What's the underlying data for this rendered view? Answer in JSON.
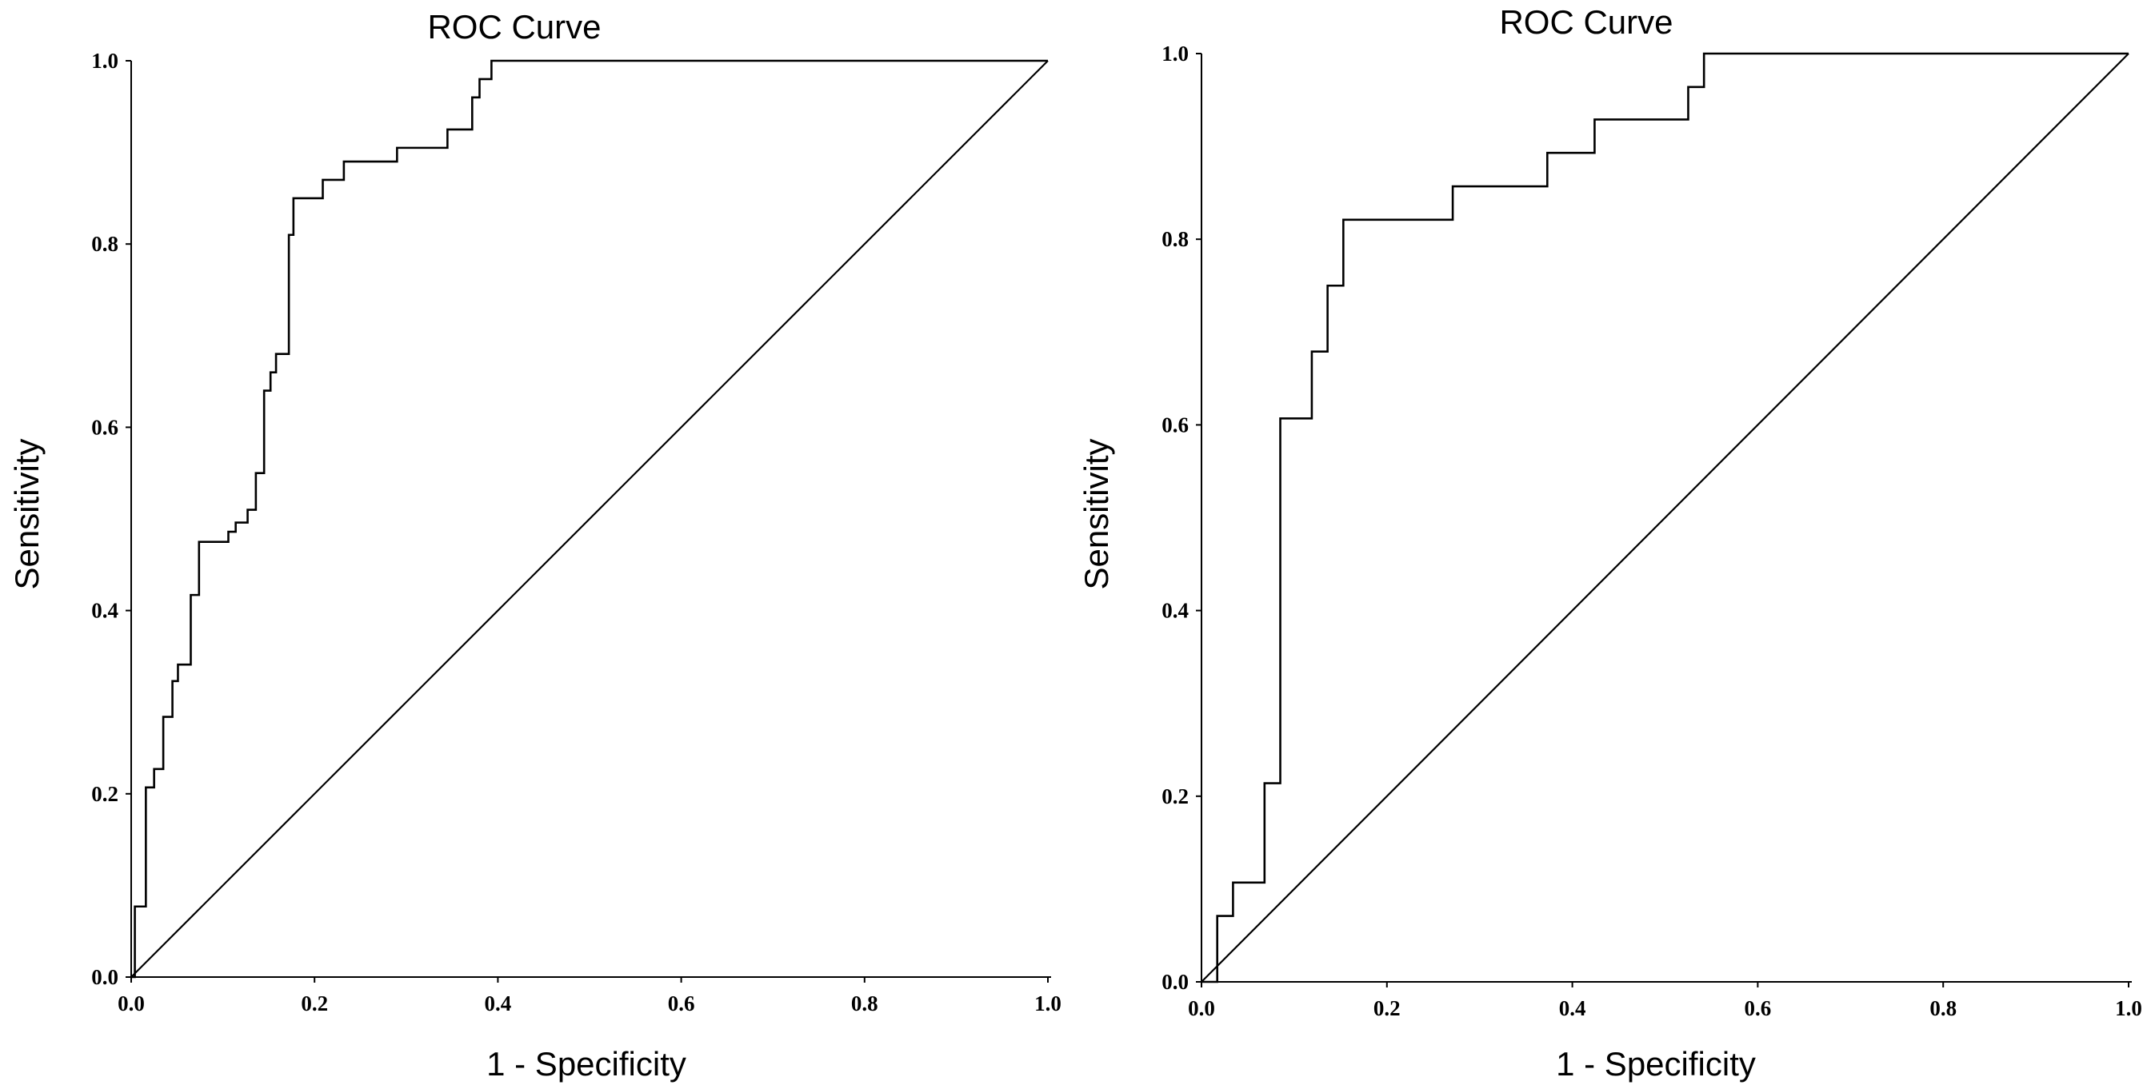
{
  "chart_data": [
    {
      "type": "line",
      "title": "ROC Curve",
      "xlabel": "1 - Specificity",
      "ylabel": "Sensitivity",
      "xlim": [
        0,
        1
      ],
      "ylim": [
        0,
        1
      ],
      "xticks": [
        "0.0",
        "0.2",
        "0.4",
        "0.6",
        "0.8",
        "1.0"
      ],
      "yticks": [
        "0.0",
        "0.2",
        "0.4",
        "0.6",
        "0.8",
        "1.0"
      ],
      "grid": false,
      "series": [
        {
          "kind": "roc",
          "x": [
            0,
            0.004,
            0.004,
            0.016,
            0.016,
            0.025,
            0.025,
            0.035,
            0.035,
            0.045,
            0.045,
            0.051,
            0.051,
            0.065,
            0.065,
            0.074,
            0.074,
            0.106,
            0.106,
            0.114,
            0.114,
            0.127,
            0.127,
            0.136,
            0.136,
            0.145,
            0.145,
            0.152,
            0.152,
            0.158,
            0.158,
            0.172,
            0.172,
            0.177,
            0.177,
            0.209,
            0.209,
            0.232,
            0.232,
            0.29,
            0.29,
            0.345,
            0.345,
            0.372,
            0.372,
            0.38,
            0.38,
            0.387,
            0.387,
            0.393,
            0.393,
            0.41,
            0.41,
            1.0
          ],
          "y": [
            0,
            0,
            0.077,
            0.077,
            0.207,
            0.207,
            0.227,
            0.227,
            0.284,
            0.284,
            0.323,
            0.323,
            0.341,
            0.341,
            0.417,
            0.417,
            0.475,
            0.475,
            0.486,
            0.486,
            0.496,
            0.496,
            0.51,
            0.51,
            0.55,
            0.55,
            0.64,
            0.64,
            0.66,
            0.66,
            0.68,
            0.68,
            0.81,
            0.81,
            0.85,
            0.85,
            0.87,
            0.87,
            0.89,
            0.89,
            0.905,
            0.905,
            0.925,
            0.925,
            0.96,
            0.96,
            0.98,
            0.98,
            0.98,
            0.98,
            1.0,
            1.0,
            1.0,
            1.0
          ]
        },
        {
          "kind": "reference",
          "x": [
            0,
            1
          ],
          "y": [
            0,
            1
          ]
        }
      ]
    },
    {
      "type": "line",
      "title": "ROC Curve",
      "xlabel": "1 - Specificity",
      "ylabel": "Sensitivity",
      "xlim": [
        0,
        1
      ],
      "ylim": [
        0,
        1
      ],
      "xticks": [
        "0.0",
        "0.2",
        "0.4",
        "0.6",
        "0.8",
        "1.0"
      ],
      "yticks": [
        "0.0",
        "0.2",
        "0.4",
        "0.6",
        "0.8",
        "1.0"
      ],
      "grid": false,
      "series": [
        {
          "kind": "roc",
          "x": [
            0,
            0.017,
            0.017,
            0.034,
            0.034,
            0.068,
            0.068,
            0.085,
            0.085,
            0.119,
            0.119,
            0.136,
            0.136,
            0.153,
            0.153,
            0.271,
            0.271,
            0.373,
            0.373,
            0.424,
            0.424,
            0.525,
            0.525,
            0.542,
            0.542,
            1.0
          ],
          "y": [
            0,
            0,
            0.071,
            0.071,
            0.107,
            0.107,
            0.214,
            0.214,
            0.607,
            0.607,
            0.679,
            0.679,
            0.75,
            0.75,
            0.821,
            0.821,
            0.857,
            0.857,
            0.893,
            0.893,
            0.929,
            0.929,
            0.964,
            0.964,
            1.0,
            1.0
          ]
        },
        {
          "kind": "reference",
          "x": [
            0,
            1
          ],
          "y": [
            0,
            1
          ]
        }
      ]
    }
  ]
}
